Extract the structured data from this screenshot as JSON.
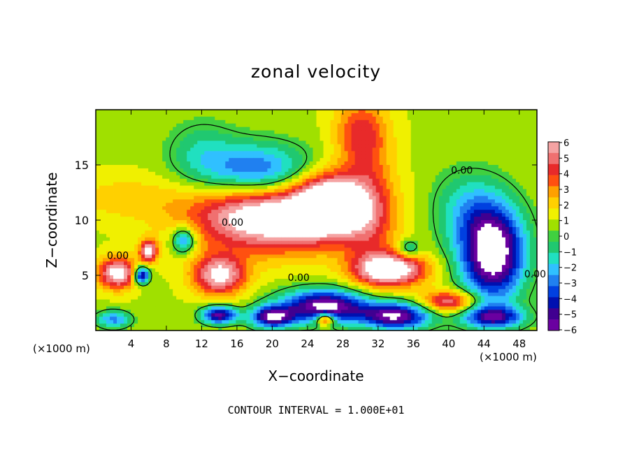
{
  "chart_data": {
    "type": "heatmap",
    "title": "zonal velocity",
    "xlabel": "X−coordinate",
    "ylabel": "Z−coordinate",
    "x_unit_label": "(×1000 m)",
    "x_ticks": [
      4,
      8,
      12,
      16,
      20,
      24,
      28,
      32,
      36,
      40,
      44,
      48
    ],
    "y_ticks": [
      5,
      10,
      15
    ],
    "xlim": [
      0,
      50
    ],
    "ylim": [
      0,
      20
    ],
    "contour_labels": [
      {
        "text": "0.00",
        "x": 15.5,
        "z": 9.5
      },
      {
        "text": "0.00",
        "x": 23,
        "z": 4.5
      },
      {
        "text": "0.00",
        "x": 41.5,
        "z": 14.2
      },
      {
        "text": "0.00",
        "x": 49.8,
        "z": 4.8
      },
      {
        "text": "0.00",
        "x": 2.5,
        "z": 6.5
      }
    ],
    "colorbar": {
      "levels": [
        6,
        5,
        4,
        3,
        2,
        1,
        0,
        -1,
        -2,
        -3,
        -4,
        -5,
        -6
      ],
      "labels": [
        "6",
        "5",
        "4",
        "3",
        "2",
        "1",
        "0",
        "−1",
        "−2",
        "−3",
        "−4",
        "−5",
        "−6"
      ],
      "colors": [
        "#f5a3a3",
        "#f07070",
        "#e82a2a",
        "#ff5010",
        "#ffa000",
        "#ffd000",
        "#f0f000",
        "#a0e000",
        "#40d040",
        "#20c870",
        "#20e0c0",
        "#30c0ff",
        "#2080f0",
        "#0040e0",
        "#0010b0",
        "#400090",
        "#6a00a0"
      ]
    },
    "blobs": [
      {
        "x": 20,
        "z": 10.5,
        "rx": 9,
        "rz": 3.2,
        "v": 8
      },
      {
        "x": 26.5,
        "z": 11.5,
        "rx": 3.5,
        "rz": 2.5,
        "v": 7
      },
      {
        "x": 30,
        "z": 18,
        "rx": 3,
        "rz": 3,
        "v": 3.2
      },
      {
        "x": 31,
        "z": 11,
        "rx": 3,
        "rz": 6,
        "v": 3
      },
      {
        "x": 33.5,
        "z": 5.5,
        "rx": 4,
        "rz": 1.5,
        "v": 7
      },
      {
        "x": 14,
        "z": 5,
        "rx": 3,
        "rz": 1.8,
        "v": 6
      },
      {
        "x": 2.5,
        "z": 5.2,
        "rx": 2.2,
        "rz": 1.4,
        "v": 6.5
      },
      {
        "x": 6,
        "z": 7.2,
        "rx": 1,
        "rz": 1,
        "v": 6
      },
      {
        "x": 3,
        "z": 12,
        "rx": 6,
        "rz": 2,
        "v": 1.3
      },
      {
        "x": 18.5,
        "z": 14.2,
        "rx": 6,
        "rz": 2.6,
        "v": -5.5
      },
      {
        "x": 12,
        "z": 16,
        "rx": 4,
        "rz": 3,
        "v": -2
      },
      {
        "x": 10,
        "z": 8.2,
        "rx": 1.4,
        "rz": 1.2,
        "v": -4.5
      },
      {
        "x": 45,
        "z": 7,
        "rx": 3.6,
        "rz": 4.2,
        "v": -9
      },
      {
        "x": 42,
        "z": 11,
        "rx": 4,
        "rz": 3.5,
        "v": -2.5
      },
      {
        "x": 26,
        "z": 2.2,
        "rx": 5,
        "rz": 1.5,
        "v": -8
      },
      {
        "x": 20,
        "z": 1.2,
        "rx": 2.5,
        "rz": 1,
        "v": -7
      },
      {
        "x": 34,
        "z": 1.3,
        "rx": 4,
        "rz": 1.2,
        "v": -7.5
      },
      {
        "x": 45,
        "z": 1.2,
        "rx": 3.5,
        "rz": 1,
        "v": -6
      },
      {
        "x": 5.2,
        "z": 5,
        "rx": 0.9,
        "rz": 0.8,
        "v": -7
      },
      {
        "x": 14,
        "z": 1.4,
        "rx": 2,
        "rz": 0.8,
        "v": -7
      },
      {
        "x": 2,
        "z": 1,
        "rx": 2,
        "rz": 0.8,
        "v": -4
      },
      {
        "x": 26,
        "z": 1,
        "rx": 1,
        "rz": 0.6,
        "v": 6
      },
      {
        "x": 35.5,
        "z": 7.4,
        "rx": 1.2,
        "rz": 0.8,
        "v": -3
      },
      {
        "x": 40,
        "z": 2.6,
        "rx": 3,
        "rz": 1,
        "v": 5
      }
    ]
  },
  "footer": {
    "contour_interval": "CONTOUR INTERVAL = 1.000E+01"
  }
}
